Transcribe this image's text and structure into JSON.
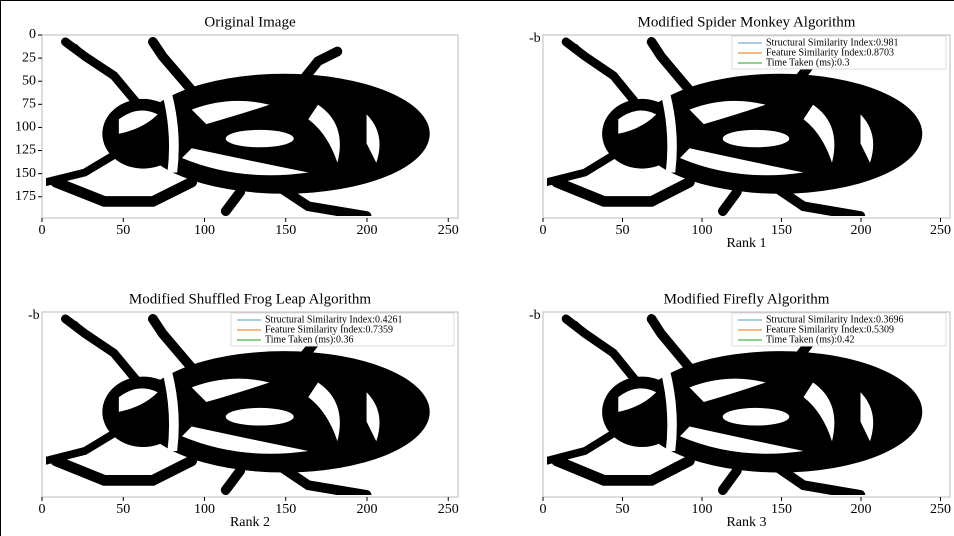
{
  "chart_data": [
    {
      "type": "image",
      "title": "Original Image",
      "xlim": [
        0,
        256
      ],
      "xticks": [
        0,
        50,
        100,
        150,
        200,
        250
      ],
      "ylim": [
        0,
        198
      ],
      "yticks": [
        0,
        25,
        50,
        75,
        100,
        125,
        150,
        175
      ]
    },
    {
      "type": "image",
      "title": "Modified Spider Monkey Algorithm",
      "annotation": "-b",
      "xlim": [
        0,
        256
      ],
      "xticks": [
        0,
        50,
        100,
        150,
        200,
        250
      ],
      "caption": "Rank 1",
      "series": [
        {
          "name": "Structural Similarity Index:0.981",
          "color": "#a9cce3"
        },
        {
          "name": "Feature Similarity Index:0.8703",
          "color": "#f5b98a"
        },
        {
          "name": "Time Taken (ms):0.3",
          "color": "#8fd18f"
        }
      ]
    },
    {
      "type": "image",
      "title": "Modified Shuffled Frog Leap Algorithm",
      "annotation": "-b",
      "xlim": [
        0,
        256
      ],
      "xticks": [
        0,
        50,
        100,
        150,
        200,
        250
      ],
      "caption": "Rank 2",
      "series": [
        {
          "name": "Structural Similarity Index:0.4261",
          "color": "#a9cce3"
        },
        {
          "name": "Feature Similarity Index:0.7359",
          "color": "#f5b98a"
        },
        {
          "name": "Time Taken (ms):0.36",
          "color": "#8fd18f"
        }
      ]
    },
    {
      "type": "image",
      "title": "Modified Firefly Algorithm",
      "annotation": "-b",
      "xlim": [
        0,
        256
      ],
      "xticks": [
        0,
        50,
        100,
        150,
        200,
        250
      ],
      "caption": "Rank 3",
      "series": [
        {
          "name": "Structural Similarity Index:0.3696",
          "color": "#a9cce3"
        },
        {
          "name": "Feature Similarity Index:0.5309",
          "color": "#f5b98a"
        },
        {
          "name": "Time Taken (ms):0.42",
          "color": "#8fd18f"
        }
      ]
    }
  ]
}
